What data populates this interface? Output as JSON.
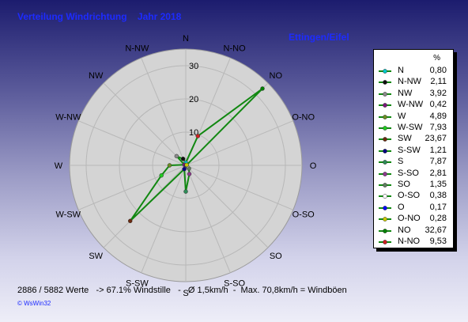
{
  "chart_data": {
    "type": "polar-line",
    "title": "Verteilung Windrichtung    Jahr 2018",
    "subtitle": "Ettingen/Eifel",
    "value_unit": "%",
    "directions": [
      "N",
      "N-NW",
      "NW",
      "W-NW",
      "W",
      "W-SW",
      "SW",
      "S-SW",
      "S",
      "S-SO",
      "SO",
      "O-SO",
      "O",
      "O-NO",
      "NO",
      "N-NO"
    ],
    "direction_labels": [
      "N",
      "N-NO",
      "NO",
      "O-NO",
      "O",
      "O-SO",
      "SO",
      "S-SO",
      "S",
      "S-SW",
      "SW",
      "W-SW",
      "W",
      "W-NW",
      "NW",
      "N-NW"
    ],
    "values": [
      0.8,
      2.11,
      3.92,
      0.42,
      4.89,
      7.93,
      23.67,
      1.21,
      7.87,
      2.81,
      1.35,
      0.38,
      0.17,
      0.28,
      32.67,
      9.53
    ],
    "formatted_values": [
      "0,80",
      "2,11",
      "3,92",
      "0,42",
      "4,89",
      "7,93",
      "23,67",
      "1,21",
      "7,87",
      "2,81",
      "1,35",
      "0,38",
      "0,17",
      "0,28",
      "32,67",
      "9,53"
    ],
    "colors": [
      "#00c8c8",
      "#101010",
      "#8a8a8a",
      "#7a1a7a",
      "#6b8e23",
      "#22cc22",
      "#6b2a10",
      "#000080",
      "#2e8b57",
      "#8b3a8b",
      "#5f7f5f",
      "#ffffff",
      "#0000ff",
      "#c8c800",
      "#008000",
      "#cc2222"
    ],
    "radial_ticks": [
      10,
      20,
      30
    ],
    "r_max": 35,
    "line_color": "#118811",
    "summary": "2886 / 5882 Werte   -> 67.1% Windstille   -   Ø 1,5km/h  -  Max. 70,8km/h = Windböen",
    "credit": "© WsWin32"
  }
}
